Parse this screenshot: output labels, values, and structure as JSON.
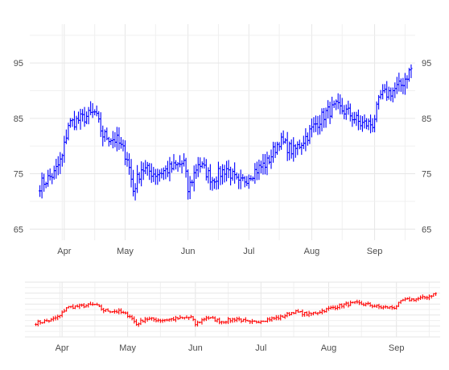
{
  "chart_data": [
    {
      "type": "ohlc",
      "panel": "main",
      "color": "#0000ff",
      "x_axis": {
        "type": "date",
        "ticks": [
          "Apr",
          "May",
          "Jun",
          "Jul",
          "Aug",
          "Sep"
        ],
        "tick_dates": [
          "2020-04-01",
          "2020-05-01",
          "2020-06-01",
          "2020-07-01",
          "2020-08-01",
          "2020-09-01"
        ],
        "range": [
          "2020-03-15",
          "2020-09-21"
        ]
      },
      "y_axis": {
        "ticks": [
          "65",
          "75",
          "85",
          "95"
        ],
        "tick_values": [
          65,
          75,
          85,
          95
        ],
        "range": [
          63,
          102
        ],
        "left_and_right": true
      },
      "grid": true,
      "series": [
        {
          "points": [
            {
              "x": "2020-03-20",
              "y": 73
            },
            {
              "x": "2020-03-27",
              "y": 75
            },
            {
              "x": "2020-03-31",
              "y": 78
            },
            {
              "x": "2020-04-03",
              "y": 84
            },
            {
              "x": "2020-04-10",
              "y": 85
            },
            {
              "x": "2020-04-16",
              "y": 86
            },
            {
              "x": "2020-04-20",
              "y": 82
            },
            {
              "x": "2020-04-27",
              "y": 81
            },
            {
              "x": "2020-05-02",
              "y": 78
            },
            {
              "x": "2020-05-05",
              "y": 72
            },
            {
              "x": "2020-05-09",
              "y": 76
            },
            {
              "x": "2020-05-16",
              "y": 75
            },
            {
              "x": "2020-05-24",
              "y": 76
            },
            {
              "x": "2020-05-30",
              "y": 77
            },
            {
              "x": "2020-06-01",
              "y": 72
            },
            {
              "x": "2020-06-06",
              "y": 77
            },
            {
              "x": "2020-06-13",
              "y": 74
            },
            {
              "x": "2020-06-20",
              "y": 76
            },
            {
              "x": "2020-06-26",
              "y": 73
            },
            {
              "x": "2020-07-02",
              "y": 75
            },
            {
              "x": "2020-07-10",
              "y": 77
            },
            {
              "x": "2020-07-16",
              "y": 81
            },
            {
              "x": "2020-07-23",
              "y": 79
            },
            {
              "x": "2020-07-30",
              "y": 82
            },
            {
              "x": "2020-08-03",
              "y": 84
            },
            {
              "x": "2020-08-08",
              "y": 86
            },
            {
              "x": "2020-08-13",
              "y": 87
            },
            {
              "x": "2020-08-19",
              "y": 86
            },
            {
              "x": "2020-08-25",
              "y": 84
            },
            {
              "x": "2020-08-31",
              "y": 84
            },
            {
              "x": "2020-09-04",
              "y": 89
            },
            {
              "x": "2020-09-10",
              "y": 90
            },
            {
              "x": "2020-09-14",
              "y": 91
            },
            {
              "x": "2020-09-19",
              "y": 94
            }
          ]
        }
      ]
    },
    {
      "type": "ohlc",
      "panel": "overview",
      "color": "#ff0000",
      "x_axis": {
        "type": "date",
        "ticks": [
          "Apr",
          "May",
          "Jun",
          "Jul",
          "Aug",
          "Sep"
        ],
        "tick_dates": [
          "2020-04-01",
          "2020-05-01",
          "2020-06-01",
          "2020-07-01",
          "2020-08-01",
          "2020-09-01"
        ],
        "range": [
          "2020-03-15",
          "2020-09-21"
        ]
      },
      "y_axis": {
        "range": [
          63,
          102
        ]
      },
      "grid": true,
      "series": [
        {
          "points": [
            {
              "x": "2020-03-20",
              "y": 73
            },
            {
              "x": "2020-03-27",
              "y": 75
            },
            {
              "x": "2020-03-31",
              "y": 78
            },
            {
              "x": "2020-04-03",
              "y": 84
            },
            {
              "x": "2020-04-10",
              "y": 85
            },
            {
              "x": "2020-04-16",
              "y": 86
            },
            {
              "x": "2020-04-20",
              "y": 82
            },
            {
              "x": "2020-04-27",
              "y": 81
            },
            {
              "x": "2020-05-02",
              "y": 78
            },
            {
              "x": "2020-05-05",
              "y": 72
            },
            {
              "x": "2020-05-09",
              "y": 76
            },
            {
              "x": "2020-05-16",
              "y": 75
            },
            {
              "x": "2020-05-24",
              "y": 76
            },
            {
              "x": "2020-05-30",
              "y": 77
            },
            {
              "x": "2020-06-01",
              "y": 72
            },
            {
              "x": "2020-06-06",
              "y": 77
            },
            {
              "x": "2020-06-13",
              "y": 74
            },
            {
              "x": "2020-06-20",
              "y": 76
            },
            {
              "x": "2020-06-26",
              "y": 73
            },
            {
              "x": "2020-07-02",
              "y": 75
            },
            {
              "x": "2020-07-10",
              "y": 77
            },
            {
              "x": "2020-07-16",
              "y": 81
            },
            {
              "x": "2020-07-23",
              "y": 79
            },
            {
              "x": "2020-07-30",
              "y": 82
            },
            {
              "x": "2020-08-03",
              "y": 84
            },
            {
              "x": "2020-08-08",
              "y": 86
            },
            {
              "x": "2020-08-13",
              "y": 87
            },
            {
              "x": "2020-08-19",
              "y": 86
            },
            {
              "x": "2020-08-25",
              "y": 84
            },
            {
              "x": "2020-08-31",
              "y": 84
            },
            {
              "x": "2020-09-04",
              "y": 89
            },
            {
              "x": "2020-09-10",
              "y": 90
            },
            {
              "x": "2020-09-14",
              "y": 91
            },
            {
              "x": "2020-09-19",
              "y": 94
            }
          ]
        }
      ]
    }
  ]
}
